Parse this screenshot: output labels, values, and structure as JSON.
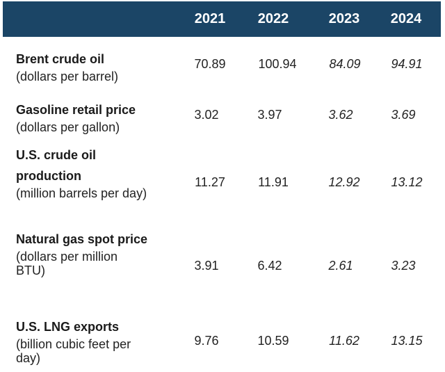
{
  "colors": {
    "header_bg": "#1b4566",
    "header_text": "#ffffff",
    "body_text": "#222222"
  },
  "chart_data": {
    "type": "table",
    "columns": [
      "2021",
      "2022",
      "2023",
      "2024"
    ],
    "italic_columns": [
      "2023",
      "2024"
    ],
    "rows": [
      {
        "label": "Brent crude oil",
        "unit": "(dollars per barrel)",
        "values": [
          "70.89",
          "100.94",
          "84.09",
          "94.91"
        ]
      },
      {
        "label": "Gasoline retail price",
        "unit": "(dollars per gallon)",
        "values": [
          "3.02",
          "3.97",
          "3.62",
          "3.69"
        ]
      },
      {
        "label": "U.S. crude oil production",
        "unit": "(million barrels per day)",
        "values": [
          "11.27",
          "11.91",
          "12.92",
          "13.12"
        ]
      },
      {
        "label": "Natural gas spot price",
        "unit": "(dollars per million BTU)",
        "values": [
          "3.91",
          "6.42",
          "2.61",
          "3.23"
        ]
      },
      {
        "label": "U.S. LNG exports",
        "unit": "(billion cubic feet per day)",
        "values": [
          "9.76",
          "10.59",
          "11.62",
          "13.15"
        ]
      }
    ]
  }
}
